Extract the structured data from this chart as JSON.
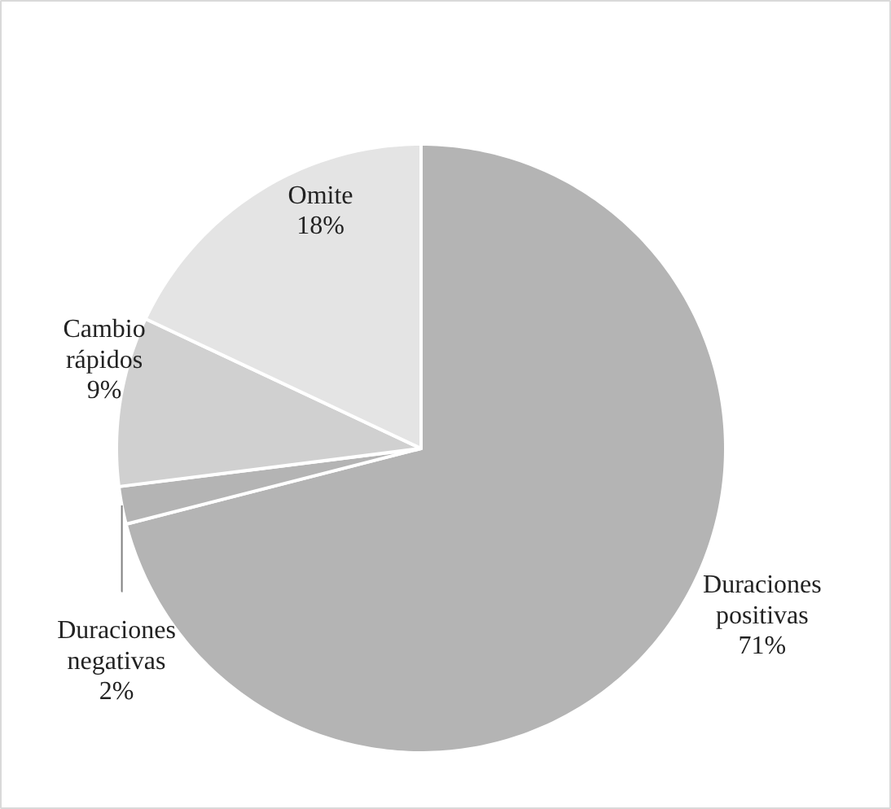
{
  "chart_data": {
    "type": "pie",
    "categories": [
      "Duraciones positivas",
      "Duraciones negativas",
      "Cambio rápidos",
      "Omite"
    ],
    "values": [
      71,
      2,
      9,
      18
    ],
    "value_labels": [
      "71%",
      "2%",
      "9%",
      "18%"
    ],
    "colors": [
      "#b4b4b4",
      "#b4b4b4",
      "#d0d0d0",
      "#e4e4e4"
    ]
  }
}
